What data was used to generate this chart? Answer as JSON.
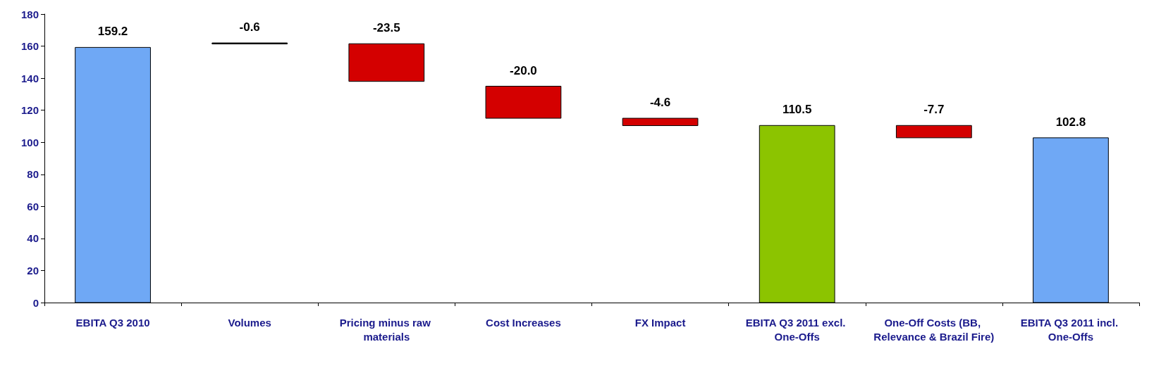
{
  "chart_data": {
    "type": "bar",
    "categories": [
      "EBITA Q3 2010",
      "Volumes",
      "Pricing minus raw materials",
      "Cost Increases",
      "FX Impact",
      "EBITA Q3 2011 excl. One-Offs",
      "One-Off Costs (BB, Relevance & Brazil Fire)",
      "EBITA Q3 2011 incl. One-Offs"
    ],
    "values": [
      159.2,
      -0.6,
      -23.5,
      -20.0,
      -4.6,
      110.5,
      -7.7,
      102.8
    ],
    "base": [
      0,
      162,
      161.5,
      135,
      115,
      0,
      110.5,
      0
    ],
    "colors": [
      "#6fa8f5",
      "#000000",
      "#d40000",
      "#d40000",
      "#d40000",
      "#8cc400",
      "#d40000",
      "#6fa8f5"
    ],
    "value_labels": [
      "159.2",
      "-0.6",
      "-23.5",
      "-20.0",
      "-4.6",
      "110.5",
      "-7.7",
      "102.8"
    ],
    "ylim": [
      0,
      180
    ],
    "yticks": [
      0,
      20,
      40,
      60,
      80,
      100,
      120,
      140,
      160,
      180
    ],
    "grid": false
  }
}
